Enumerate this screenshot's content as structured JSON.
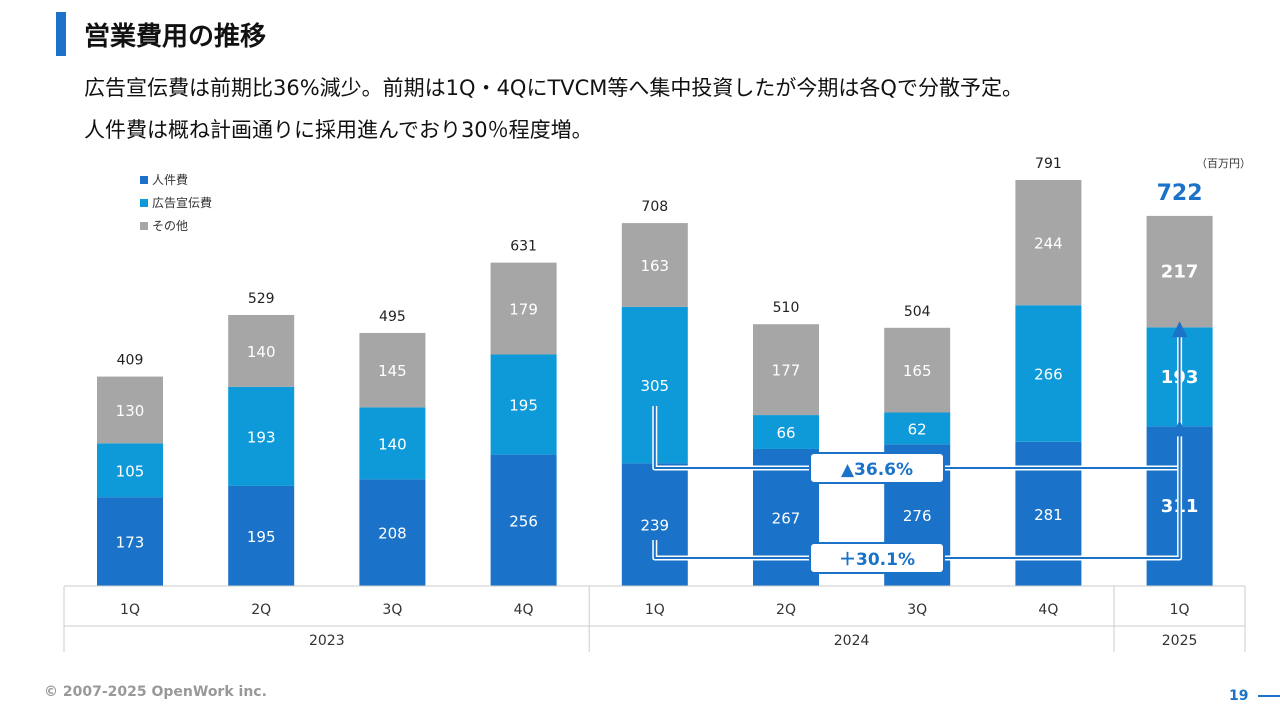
{
  "header": {
    "title": "営業費用の推移",
    "desc1": "広告宣伝費は前期比36%減少。前期は1Q・4QにTVCM等へ集中投資したが今期は各Qで分散予定。",
    "desc2": "人件費は概ね計画通りに採用進んでおり30％程度増。"
  },
  "unit_label": "（百万円）",
  "legend": [
    {
      "label": "人件費",
      "color": "#1a73c8"
    },
    {
      "label": "広告宣伝費",
      "color": "#0e9ad8"
    },
    {
      "label": "その他",
      "color": "#a6a6a6"
    }
  ],
  "chart_data": {
    "type": "bar",
    "stacked": true,
    "categories": [
      "1Q",
      "2Q",
      "3Q",
      "4Q",
      "1Q",
      "2Q",
      "3Q",
      "4Q",
      "1Q"
    ],
    "groups": [
      {
        "label": "2023",
        "count": 4
      },
      {
        "label": "2024",
        "count": 4
      },
      {
        "label": "2025",
        "count": 1
      }
    ],
    "series": [
      {
        "name": "人件費",
        "values": [
          173,
          195,
          208,
          256,
          239,
          267,
          276,
          281,
          311
        ],
        "color": "#1a73c8"
      },
      {
        "name": "広告宣伝費",
        "values": [
          105,
          193,
          140,
          195,
          305,
          66,
          62,
          266,
          193
        ],
        "color": "#0e9ad8"
      },
      {
        "name": "その他",
        "values": [
          130,
          140,
          145,
          179,
          163,
          177,
          165,
          244,
          217
        ],
        "color": "#a6a6a6"
      }
    ],
    "totals": [
      409,
      529,
      495,
      631,
      708,
      510,
      504,
      791,
      722
    ],
    "highlight_index": 8,
    "ylim": [
      0,
      800
    ],
    "annotations": [
      {
        "label": "▲36.6%",
        "series": "広告宣伝費",
        "from": 4,
        "to": 8
      },
      {
        "label": "＋30.1%",
        "series": "人件費",
        "from": 4,
        "to": 8
      }
    ]
  },
  "footer": {
    "copyright": "© 2007-2025 OpenWork inc.",
    "page": "19"
  }
}
